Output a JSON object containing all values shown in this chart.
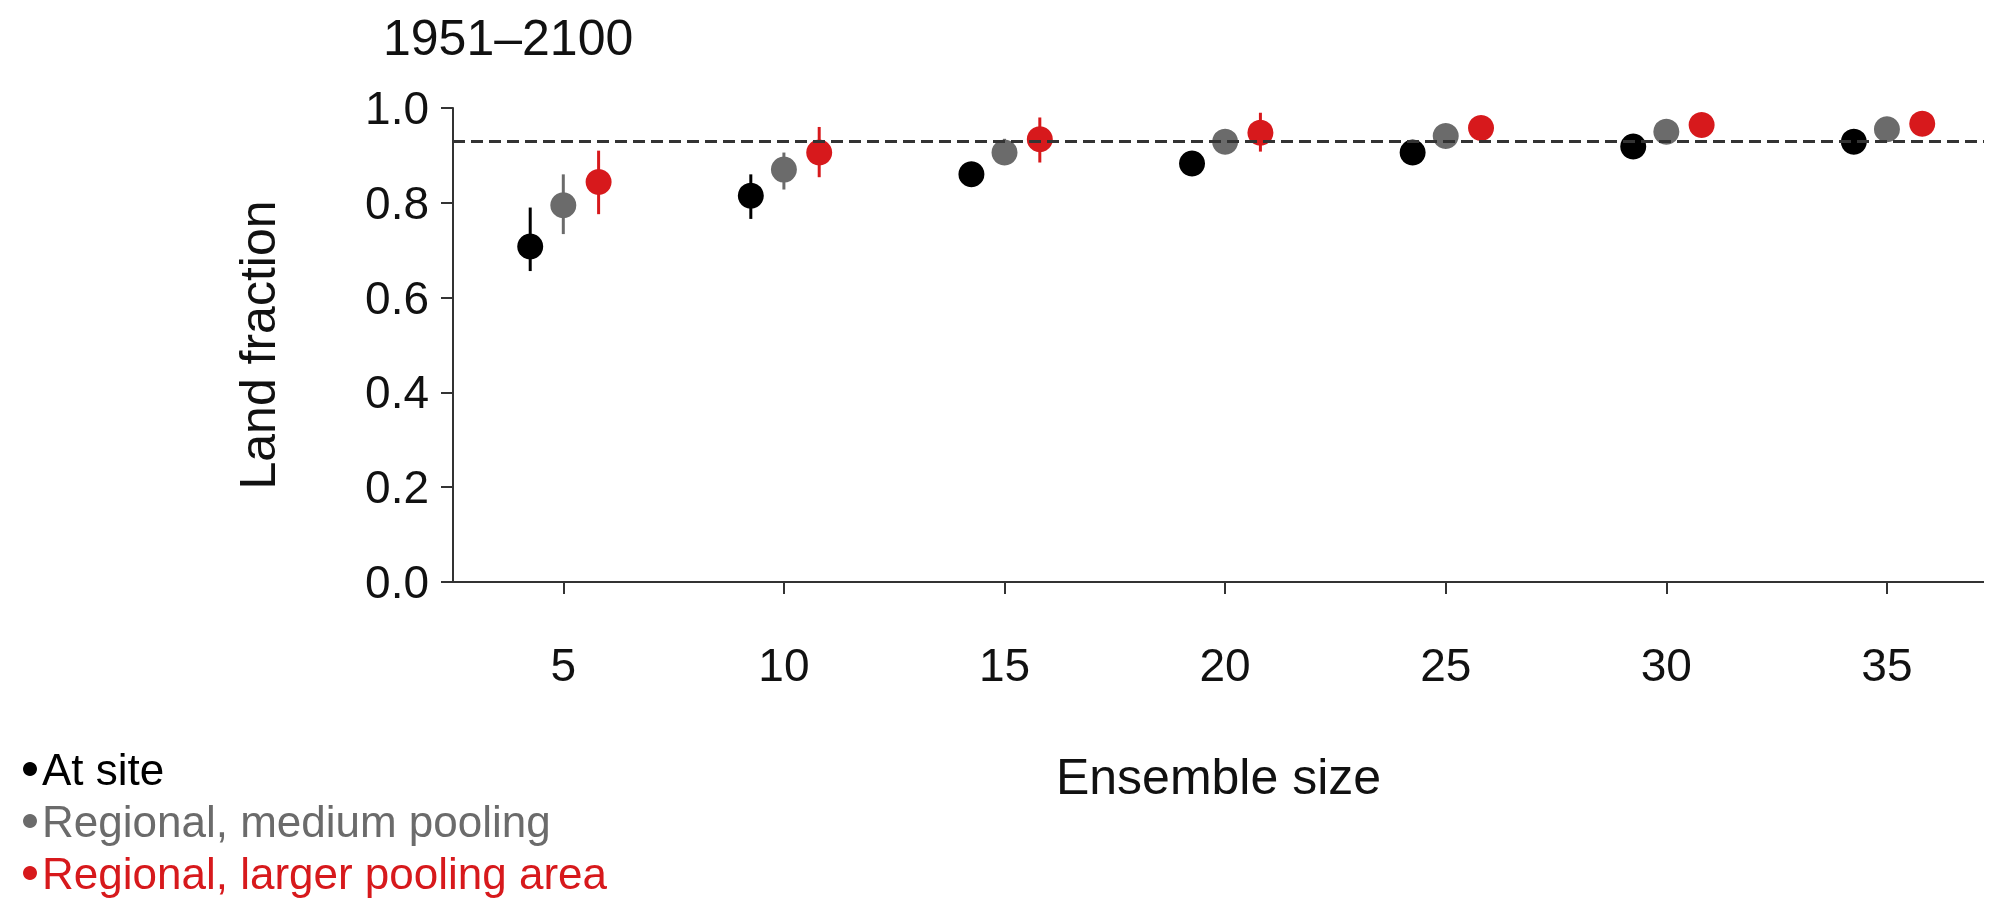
{
  "chart_data": {
    "type": "scatter",
    "title": "1951–2100",
    "xlabel": "Ensemble size",
    "ylabel": "Land fraction",
    "xlim": [
      2.5,
      37.2
    ],
    "xticks": [
      5,
      10,
      15,
      20,
      25,
      30,
      35
    ],
    "ylim": [
      0,
      1
    ],
    "yticks": [
      {
        "value": 0,
        "label": "0.0"
      },
      0.2,
      0.4,
      0.6,
      0.8,
      {
        "value": 1,
        "label": "1.0"
      }
    ],
    "grid": false,
    "legend": "bottom left",
    "marker": "circle",
    "ref_lines": [
      {
        "axis": "y",
        "value": 0.93,
        "line_style": "dashed",
        "color": "#333333"
      }
    ],
    "series": [
      {
        "name": "At site",
        "color": "#000000",
        "x": [
          4.25,
          9.25,
          14.25,
          19.25,
          24.25,
          29.25,
          34.25
        ],
        "values": [
          0.708,
          0.815,
          0.86,
          0.883,
          0.906,
          0.919,
          0.929
        ],
        "errors": [
          [
            0.656,
            0.79
          ],
          [
            0.766,
            0.86
          ],
          null,
          null,
          null,
          null,
          null
        ]
      },
      {
        "name": "Regional, medium pooling",
        "color": "#6b6b6b",
        "x": [
          5,
          10,
          15,
          20,
          25,
          30,
          35
        ],
        "values": [
          0.795,
          0.87,
          0.906,
          0.929,
          0.941,
          0.95,
          0.955
        ],
        "errors": [
          [
            0.734,
            0.86
          ],
          [
            0.828,
            0.906
          ],
          [
            0.88,
            0.935
          ],
          null,
          null,
          null,
          null
        ]
      },
      {
        "name": "Regional, larger pooling area",
        "color": "#d7191c",
        "x": [
          5.8,
          10.8,
          15.8,
          20.8,
          25.8,
          30.8,
          35.8
        ],
        "values": [
          0.844,
          0.906,
          0.934,
          0.948,
          0.958,
          0.964,
          0.967
        ],
        "errors": [
          [
            0.776,
            0.91
          ],
          [
            0.854,
            0.96
          ],
          [
            0.885,
            0.98
          ],
          [
            0.908,
            0.99
          ],
          null,
          null,
          null
        ]
      }
    ]
  }
}
